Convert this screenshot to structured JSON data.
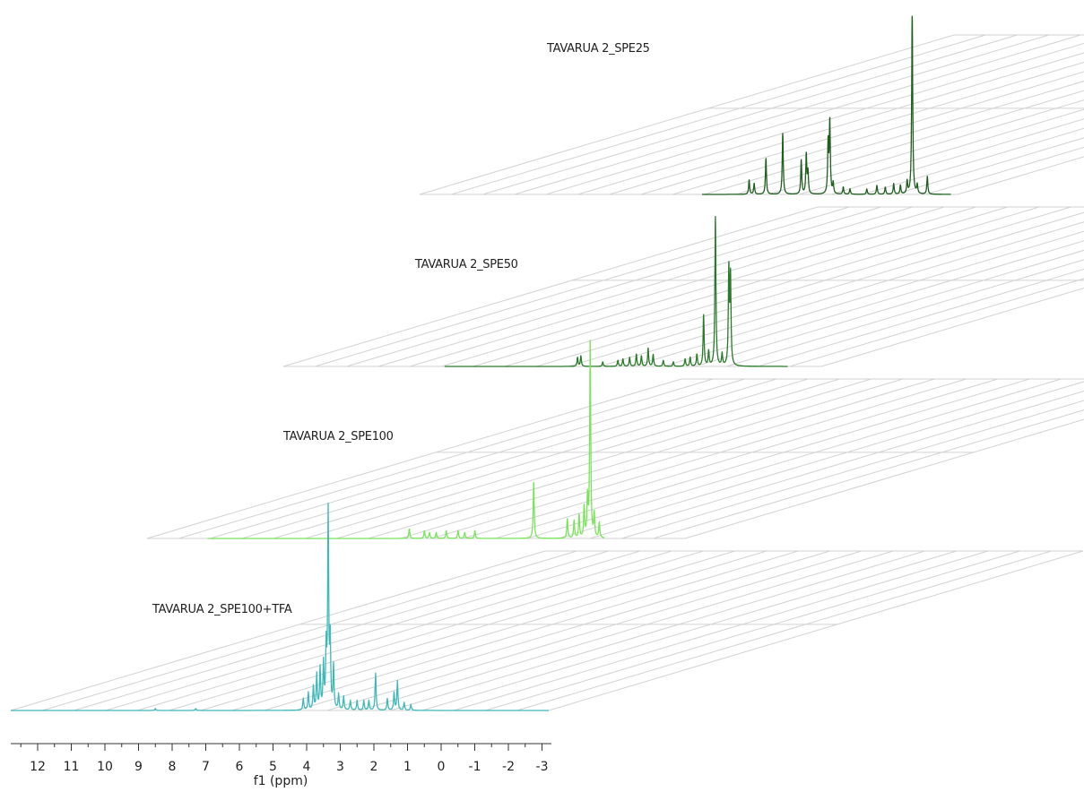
{
  "chart_data": {
    "type": "line",
    "title": "",
    "xlabel": "f1 (ppm)",
    "ylabel": "",
    "xlim": [
      12.8,
      -3.2
    ],
    "x_ticks": [
      12,
      11,
      10,
      9,
      8,
      7,
      6,
      5,
      4,
      3,
      2,
      1,
      0,
      -1,
      -2,
      -3
    ],
    "x_tick_labels": [
      "12",
      "11",
      "10",
      "9",
      "8",
      "7",
      "6",
      "5",
      "4",
      "3",
      "2",
      "1",
      "0",
      "-1",
      "-2",
      "-3"
    ],
    "grid": true,
    "series": [
      {
        "name": "TAVARUA 2_SPE25",
        "color": "#1f5e1f",
        "range": [
          4.4,
          -3.0
        ],
        "peaks": [
          {
            "ppm": 3.0,
            "h": 0.08
          },
          {
            "ppm": 2.85,
            "h": 0.06
          },
          {
            "ppm": 2.5,
            "h": 0.2
          },
          {
            "ppm": 2.0,
            "h": 0.34
          },
          {
            "ppm": 1.45,
            "h": 0.19
          },
          {
            "ppm": 1.3,
            "h": 0.22
          },
          {
            "ppm": 1.25,
            "h": 0.12
          },
          {
            "ppm": 0.65,
            "h": 0.28
          },
          {
            "ppm": 0.6,
            "h": 0.4
          },
          {
            "ppm": 0.5,
            "h": 0.06
          },
          {
            "ppm": 0.2,
            "h": 0.04
          },
          {
            "ppm": 0.0,
            "h": 0.03
          },
          {
            "ppm": -0.5,
            "h": 0.03
          },
          {
            "ppm": -0.8,
            "h": 0.05
          },
          {
            "ppm": -1.05,
            "h": 0.04
          },
          {
            "ppm": -1.3,
            "h": 0.06
          },
          {
            "ppm": -1.5,
            "h": 0.05
          },
          {
            "ppm": -1.7,
            "h": 0.07
          },
          {
            "ppm": -1.85,
            "h": 1.0
          },
          {
            "ppm": -2.0,
            "h": 0.05
          },
          {
            "ppm": -2.3,
            "h": 0.1
          },
          {
            "ppm": 7.3,
            "h": 0.01
          }
        ]
      },
      {
        "name": "TAVARUA 2_SPE50",
        "color": "#2a7a2a",
        "range": [
          8.0,
          -2.2
        ],
        "peaks": [
          {
            "ppm": 4.05,
            "h": 0.06
          },
          {
            "ppm": 3.95,
            "h": 0.07
          },
          {
            "ppm": 3.3,
            "h": 0.03
          },
          {
            "ppm": 2.85,
            "h": 0.04
          },
          {
            "ppm": 2.7,
            "h": 0.05
          },
          {
            "ppm": 2.5,
            "h": 0.06
          },
          {
            "ppm": 2.3,
            "h": 0.08
          },
          {
            "ppm": 2.15,
            "h": 0.07
          },
          {
            "ppm": 1.95,
            "h": 0.12
          },
          {
            "ppm": 1.8,
            "h": 0.08
          },
          {
            "ppm": 1.5,
            "h": 0.04
          },
          {
            "ppm": 1.2,
            "h": 0.03
          },
          {
            "ppm": 0.85,
            "h": 0.05
          },
          {
            "ppm": 0.7,
            "h": 0.06
          },
          {
            "ppm": 0.5,
            "h": 0.08
          },
          {
            "ppm": 0.3,
            "h": 0.34
          },
          {
            "ppm": 0.15,
            "h": 0.1
          },
          {
            "ppm": -0.05,
            "h": 1.0
          },
          {
            "ppm": -0.25,
            "h": 0.08
          },
          {
            "ppm": -0.45,
            "h": 0.64
          },
          {
            "ppm": -0.5,
            "h": 0.58
          }
        ]
      },
      {
        "name": "TAVARUA 2_SPE100",
        "color": "#79e45a",
        "range": [
          11.0,
          -0.8
        ],
        "peaks": [
          {
            "ppm": 5.0,
            "h": 0.05
          },
          {
            "ppm": 4.55,
            "h": 0.04
          },
          {
            "ppm": 4.4,
            "h": 0.03
          },
          {
            "ppm": 4.2,
            "h": 0.03
          },
          {
            "ppm": 3.9,
            "h": 0.04
          },
          {
            "ppm": 3.55,
            "h": 0.04
          },
          {
            "ppm": 3.35,
            "h": 0.03
          },
          {
            "ppm": 3.05,
            "h": 0.04
          },
          {
            "ppm": 1.3,
            "h": 0.29
          },
          {
            "ppm": 0.3,
            "h": 0.1
          },
          {
            "ppm": 0.1,
            "h": 0.09
          },
          {
            "ppm": -0.05,
            "h": 0.12
          },
          {
            "ppm": -0.2,
            "h": 0.16
          },
          {
            "ppm": -0.3,
            "h": 0.2
          },
          {
            "ppm": -0.38,
            "h": 1.0
          },
          {
            "ppm": -0.5,
            "h": 0.12
          },
          {
            "ppm": -0.65,
            "h": 0.08
          },
          {
            "ppm": -1.3,
            "h": 0.06
          },
          {
            "ppm": -1.5,
            "h": 0.14
          },
          {
            "ppm": -1.75,
            "h": 0.07
          },
          {
            "ppm": -1.95,
            "h": 0.08
          },
          {
            "ppm": -2.15,
            "h": 0.13
          },
          {
            "ppm": -2.4,
            "h": 0.05
          }
        ]
      },
      {
        "name": "TAVARUA 2_SPE100+TFA",
        "color": "#3fb8b8",
        "range": [
          12.8,
          -3.2
        ],
        "peaks": [
          {
            "ppm": 8.5,
            "h": 0.01
          },
          {
            "ppm": 7.3,
            "h": 0.01
          },
          {
            "ppm": 4.1,
            "h": 0.06
          },
          {
            "ppm": 3.95,
            "h": 0.09
          },
          {
            "ppm": 3.8,
            "h": 0.12
          },
          {
            "ppm": 3.7,
            "h": 0.18
          },
          {
            "ppm": 3.6,
            "h": 0.21
          },
          {
            "ppm": 3.5,
            "h": 0.23
          },
          {
            "ppm": 3.42,
            "h": 0.3
          },
          {
            "ppm": 3.36,
            "h": 1.0
          },
          {
            "ppm": 3.3,
            "h": 0.34
          },
          {
            "ppm": 3.2,
            "h": 0.22
          },
          {
            "ppm": 3.05,
            "h": 0.08
          },
          {
            "ppm": 2.9,
            "h": 0.07
          },
          {
            "ppm": 2.7,
            "h": 0.05
          },
          {
            "ppm": 2.5,
            "h": 0.05
          },
          {
            "ppm": 2.3,
            "h": 0.05
          },
          {
            "ppm": 2.15,
            "h": 0.05
          },
          {
            "ppm": 1.95,
            "h": 0.19
          },
          {
            "ppm": 1.6,
            "h": 0.06
          },
          {
            "ppm": 1.4,
            "h": 0.09
          },
          {
            "ppm": 1.3,
            "h": 0.15
          },
          {
            "ppm": 1.1,
            "h": 0.04
          },
          {
            "ppm": 0.9,
            "h": 0.03
          }
        ]
      }
    ]
  }
}
